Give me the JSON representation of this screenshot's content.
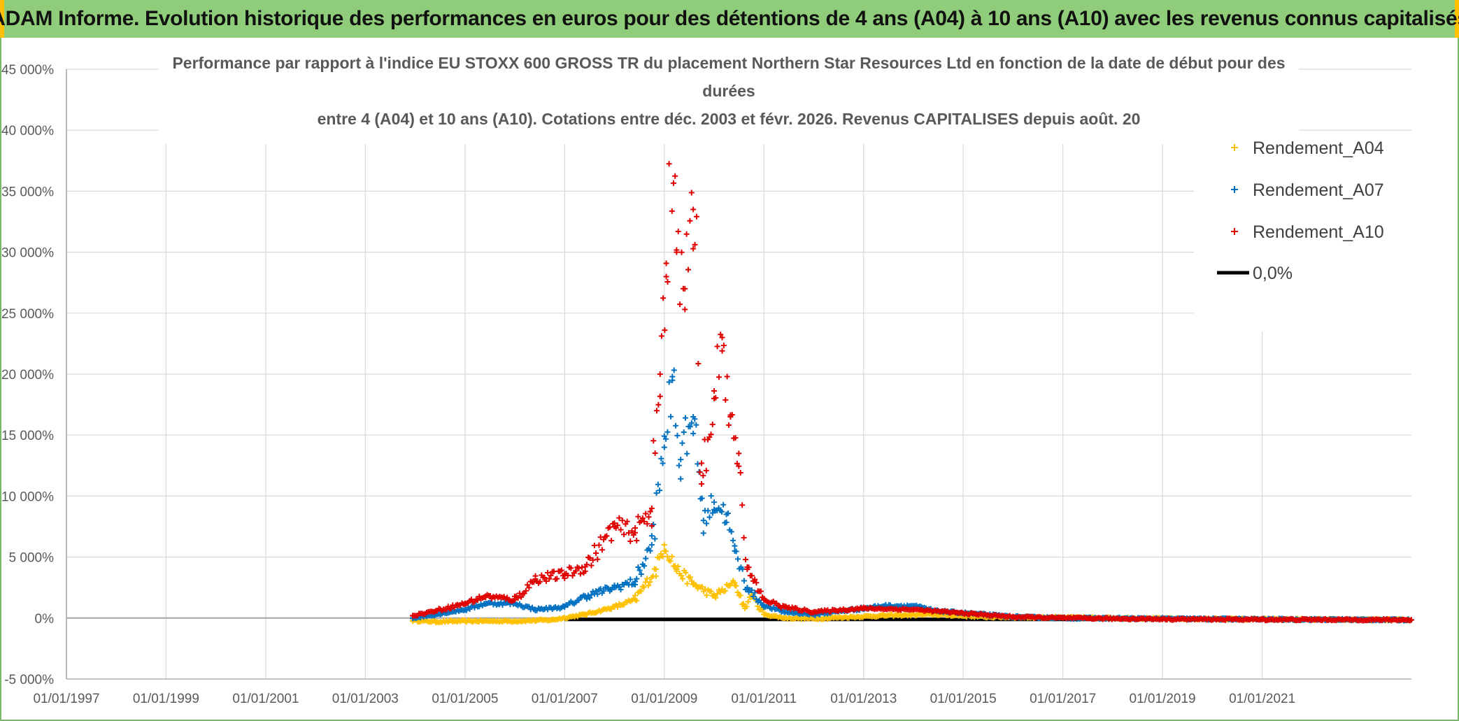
{
  "banner": {
    "title": "ADAM Informe. Evolution historique des performances en euros pour des détentions de 4 ans (A04) à 10 ans (A10) avec les revenus connus capitalisés"
  },
  "colors": {
    "banner_bg": "#8fcd7a",
    "banner_edge": "#ffc000",
    "A04": "#ffc000",
    "A07": "#0070c0",
    "A10": "#e00000",
    "zero": "#000000",
    "grid": "#d9d9d9",
    "axis": "#a6a6a6"
  },
  "chart_data": {
    "type": "scatter",
    "title_lines": [
      "Performance par rapport à l'indice EU STOXX 600 GROSS TR  du placement Northern Star Resources Ltd en fonction de la date de début pour des",
      "durées",
      "entre 4 (A04) et 10 ans (A10). Cotations entre déc. 2003 et févr. 2026. Revenus CAPITALISES depuis août. 20"
    ],
    "xlabel": "",
    "ylabel": "",
    "x_range": [
      "1997-01-01",
      "2023-12-31"
    ],
    "x_ticks": [
      "01/01/1997",
      "01/01/1999",
      "01/01/2001",
      "01/01/2003",
      "01/01/2005",
      "01/01/2007",
      "01/01/2009",
      "01/01/2011",
      "01/01/2013",
      "01/01/2015",
      "01/01/2017",
      "01/01/2019",
      "01/01/2021"
    ],
    "ylim": [
      -5000,
      45000
    ],
    "y_ticks": [
      -5000,
      0,
      5000,
      10000,
      15000,
      20000,
      25000,
      30000,
      35000,
      40000,
      45000
    ],
    "y_tick_labels": [
      "-5 000%",
      "0%",
      "5 000%",
      "10 000%",
      "15 000%",
      "20 000%",
      "25 000%",
      "30 000%",
      "35 000%",
      "40 000%",
      "45 000%"
    ],
    "grid": true,
    "legend_position": "top-right",
    "series": [
      {
        "name": "Rendement_A04",
        "marker": "plus",
        "points": [
          [
            "2003-12-15",
            -200
          ],
          [
            "2004-06-01",
            -300
          ],
          [
            "2005-01-01",
            -250
          ],
          [
            "2006-01-01",
            -250
          ],
          [
            "2006-10-01",
            -150
          ],
          [
            "2007-06-01",
            300
          ],
          [
            "2008-01-01",
            900
          ],
          [
            "2008-06-01",
            1500
          ],
          [
            "2008-11-01",
            4000
          ],
          [
            "2009-01-01",
            6000
          ],
          [
            "2009-04-01",
            4000
          ],
          [
            "2009-08-01",
            2800
          ],
          [
            "2010-01-01",
            1800
          ],
          [
            "2010-06-01",
            2900
          ],
          [
            "2010-08-15",
            800
          ],
          [
            "2010-10-01",
            1900
          ],
          [
            "2011-01-01",
            300
          ],
          [
            "2011-06-01",
            0
          ],
          [
            "2012-01-01",
            -50
          ],
          [
            "2013-06-01",
            200
          ],
          [
            "2014-06-01",
            300
          ],
          [
            "2015-06-01",
            100
          ],
          [
            "2016-06-01",
            50
          ],
          [
            "2017-06-01",
            30
          ],
          [
            "2019-01-01",
            -50
          ],
          [
            "2021-01-01",
            -100
          ],
          [
            "2023-12-31",
            -150
          ]
        ]
      },
      {
        "name": "Rendement_A07",
        "marker": "plus",
        "points": [
          [
            "2003-12-15",
            0
          ],
          [
            "2004-06-01",
            300
          ],
          [
            "2005-01-01",
            700
          ],
          [
            "2005-06-01",
            1200
          ],
          [
            "2006-01-01",
            1200
          ],
          [
            "2006-06-01",
            700
          ],
          [
            "2007-01-01",
            900
          ],
          [
            "2007-06-01",
            1800
          ],
          [
            "2008-01-01",
            2500
          ],
          [
            "2008-06-01",
            3000
          ],
          [
            "2008-10-01",
            6000
          ],
          [
            "2009-01-01",
            14000
          ],
          [
            "2009-03-01",
            19500
          ],
          [
            "2009-05-01",
            13000
          ],
          [
            "2009-08-01",
            16500
          ],
          [
            "2009-10-15",
            8000
          ],
          [
            "2010-01-01",
            9500
          ],
          [
            "2010-04-01",
            8500
          ],
          [
            "2010-06-01",
            5500
          ],
          [
            "2010-09-01",
            2500
          ],
          [
            "2011-01-01",
            1000
          ],
          [
            "2011-06-01",
            500
          ],
          [
            "2012-01-01",
            300
          ],
          [
            "2013-06-01",
            1000
          ],
          [
            "2014-01-01",
            1000
          ],
          [
            "2014-06-01",
            600
          ],
          [
            "2015-06-01",
            300
          ],
          [
            "2016-01-01",
            100
          ],
          [
            "2017-01-01",
            0
          ],
          [
            "2019-01-01",
            -50
          ],
          [
            "2021-01-01",
            -100
          ],
          [
            "2023-12-31",
            -150
          ]
        ]
      },
      {
        "name": "Rendement_A10",
        "marker": "plus",
        "points": [
          [
            "2003-12-15",
            200
          ],
          [
            "2004-06-01",
            600
          ],
          [
            "2005-01-01",
            1200
          ],
          [
            "2005-06-01",
            1800
          ],
          [
            "2006-01-01",
            1500
          ],
          [
            "2006-06-01",
            3200
          ],
          [
            "2007-01-01",
            3600
          ],
          [
            "2007-06-01",
            4200
          ],
          [
            "2008-01-01",
            7500
          ],
          [
            "2008-06-01",
            7000
          ],
          [
            "2008-10-01",
            9000
          ],
          [
            "2008-12-01",
            20000
          ],
          [
            "2009-01-15",
            28000
          ],
          [
            "2009-02-15",
            39500
          ],
          [
            "2009-04-01",
            30000
          ],
          [
            "2009-06-01",
            27000
          ],
          [
            "2009-08-01",
            33500
          ],
          [
            "2009-10-01",
            11000
          ],
          [
            "2010-01-01",
            18000
          ],
          [
            "2010-03-01",
            23000
          ],
          [
            "2010-05-01",
            16500
          ],
          [
            "2010-07-01",
            13500
          ],
          [
            "2010-09-01",
            4000
          ],
          [
            "2011-01-01",
            1500
          ],
          [
            "2011-06-01",
            900
          ],
          [
            "2012-01-01",
            500
          ],
          [
            "2013-01-01",
            800
          ],
          [
            "2014-01-01",
            700
          ],
          [
            "2015-01-01",
            400
          ],
          [
            "2016-01-01",
            100
          ],
          [
            "2017-01-01",
            0
          ],
          [
            "2019-01-01",
            -80
          ],
          [
            "2021-01-01",
            -120
          ],
          [
            "2023-12-31",
            -150
          ]
        ]
      }
    ],
    "reference_line": {
      "name": "0,0%",
      "value": 0,
      "x_start": "2007-01-01",
      "x_end": "2023-12-31"
    }
  }
}
